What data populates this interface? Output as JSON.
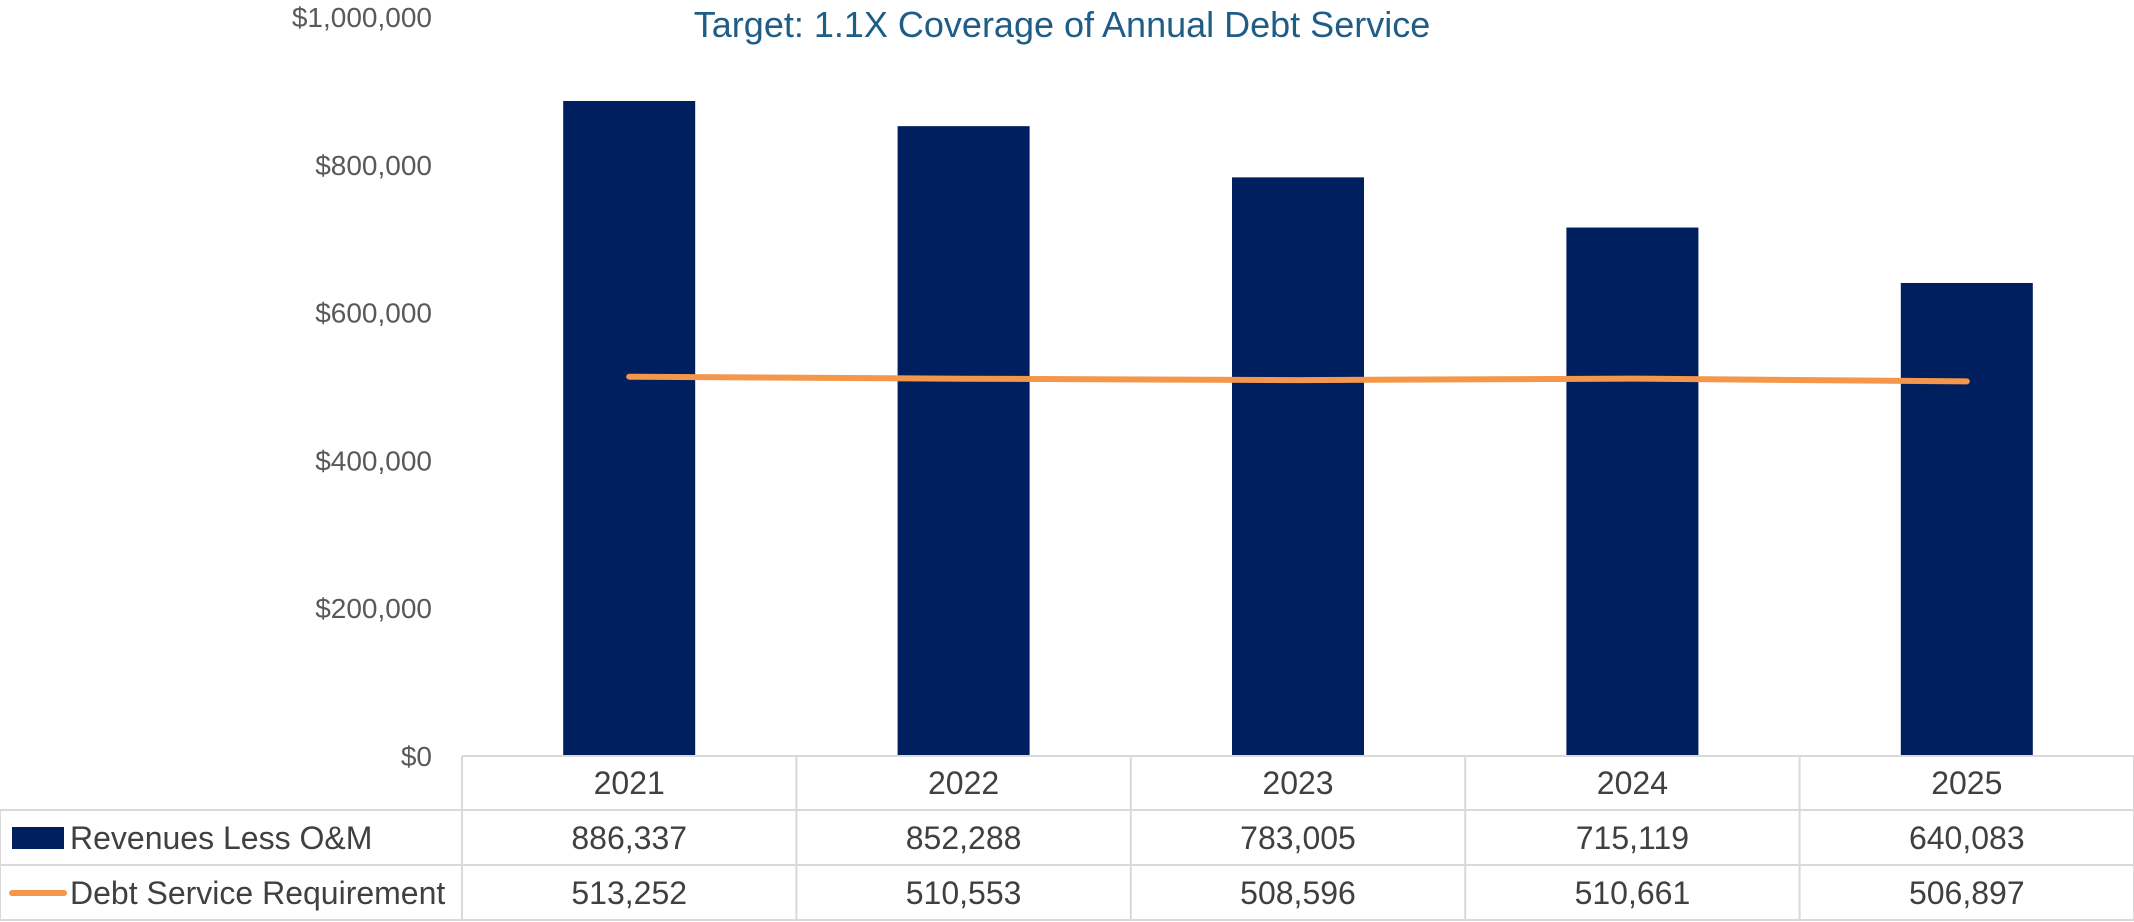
{
  "chart_data": {
    "type": "bar",
    "title": "Target: 1.1X Coverage of Annual Debt Service",
    "categories": [
      "2021",
      "2022",
      "2023",
      "2024",
      "2025"
    ],
    "ylim": [
      0,
      1000000
    ],
    "yticks": [
      "$0",
      "$200,000",
      "$400,000",
      "$600,000",
      "$800,000",
      "$1,000,000"
    ],
    "series": [
      {
        "name": "Revenues Less O&M",
        "type": "bar",
        "color": "#001F5F",
        "values": [
          886337,
          852288,
          783005,
          715119,
          640083
        ],
        "labels": [
          "886,337",
          "852,288",
          "783,005",
          "715,119",
          "640,083"
        ]
      },
      {
        "name": "Debt Service Requirement",
        "type": "line",
        "color": "#F4974A",
        "values": [
          513252,
          510553,
          508596,
          510661,
          506897
        ],
        "labels": [
          "513,252",
          "510,553",
          "508,596",
          "510,661",
          "506,897"
        ]
      }
    ],
    "legend": "data-table",
    "grid": false
  }
}
